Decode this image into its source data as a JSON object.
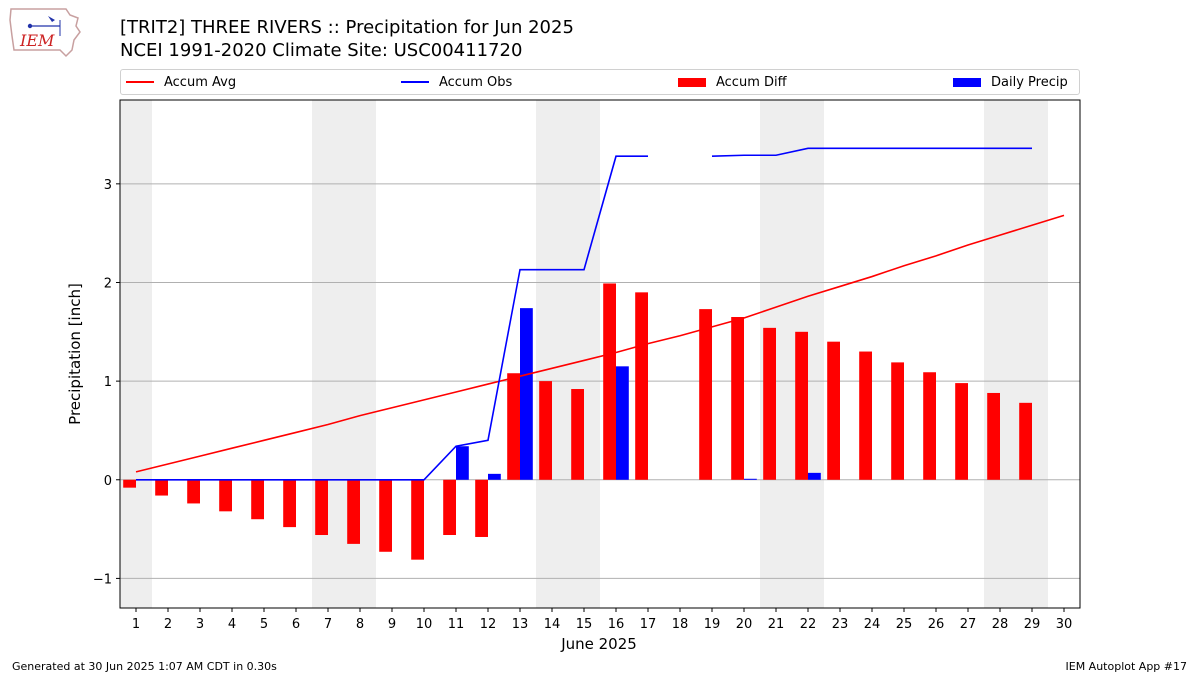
{
  "header": {
    "logo_text": "IEM",
    "title_line1": "[TRIT2] THREE RIVERS :: Precipitation for Jun 2025",
    "title_line2": "NCEI 1991-2020 Climate Site: USC00411720"
  },
  "footer": {
    "left": "Generated at 30 Jun 2025 1:07 AM CDT in 0.30s",
    "right": "IEM Autoplot App #17"
  },
  "colors": {
    "avg": "#ff0000",
    "obs": "#0000ff",
    "diff": "#ff0000",
    "daily": "#0000ff",
    "weekend": "#eeeeee",
    "grid": "#b0b0b0"
  },
  "chart_data": {
    "type": "bar",
    "xlabel": "June 2025",
    "ylabel": "Precipitation [inch]",
    "ylim": [
      -1.3,
      3.85
    ],
    "xlim": [
      0.5,
      30.5
    ],
    "grid": true,
    "legend_placement": "top (above plot, single row)",
    "x": [
      1,
      2,
      3,
      4,
      5,
      6,
      7,
      8,
      9,
      10,
      11,
      12,
      13,
      14,
      15,
      16,
      17,
      18,
      19,
      20,
      21,
      22,
      23,
      24,
      25,
      26,
      27,
      28,
      29,
      30
    ],
    "x_tick_labels": [
      "1",
      "2",
      "3",
      "4",
      "5",
      "6",
      "7",
      "8",
      "9",
      "10",
      "11",
      "12",
      "13",
      "14",
      "15",
      "16",
      "17",
      "18",
      "19",
      "20",
      "21",
      "22",
      "23",
      "24",
      "25",
      "26",
      "27",
      "28",
      "29",
      "30"
    ],
    "y_ticks": [
      -1,
      0,
      1,
      2,
      3
    ],
    "y_tick_labels": [
      "−1",
      "0",
      "1",
      "2",
      "3"
    ],
    "weekend_days": [
      1,
      7,
      8,
      14,
      15,
      21,
      22,
      28,
      29
    ],
    "series": [
      {
        "name": "Accum Avg",
        "kind": "line",
        "values": [
          0.08,
          0.16,
          0.24,
          0.32,
          0.4,
          0.48,
          0.56,
          0.65,
          0.73,
          0.81,
          0.89,
          0.97,
          1.05,
          1.13,
          1.21,
          1.29,
          1.38,
          1.46,
          1.55,
          1.64,
          1.75,
          1.86,
          1.96,
          2.06,
          2.17,
          2.27,
          2.38,
          2.48,
          2.58,
          2.68
        ]
      },
      {
        "name": "Accum Obs",
        "kind": "line",
        "values": [
          0,
          0,
          0,
          0,
          0,
          0,
          0,
          0,
          0,
          0,
          0.34,
          0.4,
          2.13,
          2.13,
          2.13,
          3.28,
          3.28,
          null,
          3.28,
          3.29,
          3.29,
          3.36,
          3.36,
          3.36,
          3.36,
          3.36,
          3.36,
          3.36,
          3.36,
          null
        ]
      },
      {
        "name": "Accum Diff",
        "kind": "bar",
        "values": [
          -0.08,
          -0.16,
          -0.24,
          -0.32,
          -0.4,
          -0.48,
          -0.56,
          -0.65,
          -0.73,
          -0.81,
          -0.56,
          -0.58,
          1.08,
          1.0,
          0.92,
          1.99,
          1.9,
          null,
          1.73,
          1.65,
          1.54,
          1.5,
          1.4,
          1.3,
          1.19,
          1.09,
          0.98,
          0.88,
          0.78,
          null
        ]
      },
      {
        "name": "Daily Precip",
        "kind": "bar",
        "values": [
          0,
          0,
          0,
          0,
          0,
          0,
          0,
          0,
          0,
          0,
          0.34,
          0.06,
          1.74,
          0,
          0,
          1.15,
          0,
          null,
          0,
          0.01,
          0,
          0.07,
          0,
          0,
          0,
          0,
          0,
          0,
          0,
          null
        ]
      }
    ]
  }
}
